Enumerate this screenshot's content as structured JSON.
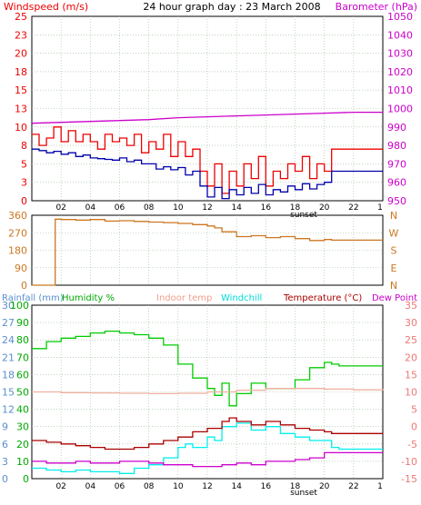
{
  "header": {
    "title": "24 hour graph day : 23 March 2008",
    "left_label": "Windspeed (m/s)",
    "right_label": "Barometer (hPa)"
  },
  "legend": {
    "rainfall": "Rainfall (mm)",
    "humidity": "Humidity %",
    "indoor": "Indoor temp",
    "windchill": "Windchill",
    "temperature": "Temperature (°C)",
    "dewpoint": "Dew Point"
  },
  "sunset_label": "sunset",
  "colors": {
    "windspeed": "#ee0000",
    "average_wind": "#0000aa",
    "barometer": "#cc00cc",
    "direction": "#cc7722",
    "humidity": "#00cc00",
    "indoor": "#f0b0a0",
    "windchill": "#00eeee",
    "temperature": "#aa0000",
    "dewpoint": "#cc00cc",
    "grid": "#99bb99",
    "axis_left_top": "#ee0000",
    "axis_right_top": "#cc00cc",
    "axis_bottom_left_blue": "#5b8fcf",
    "axis_bottom_left_green": "#00aa00",
    "axis_bottom_right": "#ee7777"
  },
  "chart_data": [
    {
      "id": "wind_baro",
      "type": "line",
      "title": "24 hour graph day : 23 March 2008",
      "xlabel": "",
      "x_ticks": [
        "02",
        "04",
        "06",
        "08",
        "10",
        "12",
        "14",
        "16",
        "18",
        "20",
        "22"
      ],
      "x_end_tick": "1",
      "xlim": [
        0,
        24
      ],
      "y_left_label": "Windspeed (m/s)",
      "y_left_ticks": [
        0,
        3,
        5,
        8,
        10,
        13,
        15,
        18,
        20,
        23,
        25
      ],
      "y_left_lim": [
        0,
        25
      ],
      "y_right_label": "Barometer (hPa)",
      "y_right_ticks": [
        950,
        960,
        970,
        980,
        990,
        1000,
        1010,
        1020,
        1030,
        1040,
        1050
      ],
      "y_right_lim": [
        950,
        1050
      ],
      "grid": true,
      "series": [
        {
          "name": "Windspeed (m/s)",
          "axis": "left",
          "key": "windspeed",
          "x": [
            0,
            0.5,
            1,
            1.5,
            2,
            2.5,
            3,
            3.5,
            4,
            4.5,
            5,
            5.5,
            6,
            6.5,
            7,
            7.5,
            8,
            8.5,
            9,
            9.5,
            10,
            10.5,
            11,
            11.5,
            12,
            12.5,
            13,
            13.5,
            14,
            14.5,
            15,
            15.5,
            16,
            16.5,
            17,
            17.5,
            18,
            18.5,
            19,
            19.5,
            20,
            20.5,
            21,
            21.5,
            22,
            22.5,
            23,
            23.5,
            24
          ],
          "y": [
            9,
            7.5,
            8.5,
            10,
            8,
            9.5,
            8,
            9,
            8,
            7,
            9,
            8,
            8.5,
            7.5,
            9,
            6.5,
            8,
            7,
            9,
            6,
            8,
            6,
            7,
            4,
            2,
            5,
            1,
            4,
            2,
            5,
            3,
            6,
            2,
            4,
            3,
            5,
            4,
            6,
            3,
            5,
            4,
            7,
            7,
            7,
            7,
            7,
            7,
            7,
            7
          ]
        },
        {
          "name": "Average windspeed",
          "axis": "left",
          "key": "average_wind",
          "x": [
            0,
            0.5,
            1,
            1.5,
            2,
            2.5,
            3,
            3.5,
            4,
            4.5,
            5,
            5.5,
            6,
            6.5,
            7,
            7.5,
            8,
            8.5,
            9,
            9.5,
            10,
            10.5,
            11,
            11.5,
            12,
            12.5,
            13,
            13.5,
            14,
            14.5,
            15,
            15.5,
            16,
            16.5,
            17,
            17.5,
            18,
            18.5,
            19,
            19.5,
            20,
            20.5,
            21,
            21.5,
            22,
            22.5,
            23,
            23.5,
            24
          ],
          "y": [
            7,
            6.8,
            6.5,
            6.7,
            6.3,
            6.5,
            6,
            6.2,
            5.8,
            5.7,
            5.6,
            5.5,
            5.8,
            5.3,
            5.5,
            5,
            5,
            4.3,
            4.6,
            4.2,
            4.5,
            3.5,
            4,
            2,
            0.5,
            1.8,
            0.3,
            1.5,
            0.8,
            1.8,
            1,
            2.2,
            0.8,
            1.5,
            1.2,
            2,
            1.5,
            2.3,
            1.6,
            2.2,
            2.5,
            4,
            4,
            4,
            4,
            4,
            4,
            4,
            4
          ]
        },
        {
          "name": "Barometer (hPa)",
          "axis": "right",
          "key": "barometer",
          "x": [
            0,
            2,
            4,
            6,
            8,
            10,
            12,
            14,
            16,
            18,
            20,
            22,
            24
          ],
          "y": [
            992,
            992.5,
            993,
            993.5,
            994,
            995,
            995.5,
            996,
            996.5,
            997,
            997.5,
            998,
            998
          ]
        }
      ]
    },
    {
      "id": "wind_direction",
      "type": "line",
      "xlim": [
        0,
        24
      ],
      "y_left_ticks": [
        0,
        90,
        180,
        270,
        360
      ],
      "y_left_lim": [
        0,
        360
      ],
      "y_right_ticks": [
        "N",
        "W",
        "S",
        "E",
        "N"
      ],
      "grid": true,
      "series": [
        {
          "name": "Wind direction",
          "key": "direction",
          "x": [
            0,
            1.3,
            1.6,
            2,
            3,
            4,
            5,
            6,
            7,
            8,
            9,
            10,
            11,
            12,
            12.5,
            13,
            14,
            15,
            16,
            17,
            18,
            19,
            20,
            20.5,
            21,
            22,
            23,
            24
          ],
          "y": [
            0,
            0,
            340,
            338,
            335,
            338,
            330,
            332,
            328,
            325,
            322,
            318,
            312,
            305,
            295,
            275,
            250,
            255,
            245,
            250,
            240,
            230,
            235,
            232,
            232,
            232,
            232,
            232
          ]
        }
      ]
    },
    {
      "id": "temp_hum",
      "type": "line",
      "xlim": [
        0,
        24
      ],
      "legend": [
        "Rainfall (mm)",
        "Humidity %",
        "Indoor temp",
        "Windchill",
        "Temperature (°C)",
        "Dew Point"
      ],
      "sunset_label": "sunset",
      "y_left_rain_ticks": [
        0,
        3,
        6,
        9,
        12,
        15,
        18,
        21,
        24,
        27,
        30
      ],
      "y_left_hum_ticks": [
        0,
        10,
        20,
        30,
        40,
        50,
        60,
        70,
        80,
        90,
        100
      ],
      "y_left_lim": [
        0,
        100
      ],
      "y_right_ticks": [
        -15,
        -10,
        -5,
        0,
        5,
        10,
        15,
        20,
        25,
        30,
        35
      ],
      "y_right_lim": [
        -15,
        35
      ],
      "grid": true,
      "series": [
        {
          "name": "Humidity %",
          "axis": "left",
          "key": "humidity",
          "x": [
            0,
            1,
            2,
            3,
            4,
            5,
            6,
            7,
            8,
            9,
            10,
            11,
            12,
            12.5,
            13,
            13.5,
            14,
            15,
            16,
            17,
            18,
            19,
            20,
            20.5,
            21,
            22,
            23,
            24
          ],
          "y": [
            75,
            79,
            81,
            82,
            84,
            85,
            84,
            83,
            81,
            77,
            66,
            58,
            52,
            48,
            55,
            42,
            49,
            55,
            52,
            52,
            57,
            64,
            67,
            66,
            65,
            65,
            65,
            65
          ]
        },
        {
          "name": "Indoor temp",
          "axis": "right",
          "key": "indoor",
          "x": [
            0,
            2,
            4,
            6,
            8,
            10,
            12,
            14,
            16,
            18,
            20,
            22,
            24
          ],
          "y": [
            10,
            9.8,
            9.7,
            9.6,
            9.5,
            9.6,
            10,
            10.5,
            11,
            11,
            10.8,
            10.6,
            10.5
          ]
        },
        {
          "name": "Windchill",
          "axis": "right",
          "key": "windchill",
          "x": [
            0,
            1,
            2,
            3,
            4,
            5,
            6,
            7,
            8,
            9,
            10,
            10.5,
            11,
            12,
            12.5,
            13,
            13.5,
            14,
            15,
            16,
            17,
            18,
            19,
            20,
            20.5,
            21,
            22,
            23,
            24
          ],
          "y": [
            -12,
            -12.5,
            -13,
            -12.5,
            -13,
            -13,
            -13.5,
            -12,
            -11,
            -9,
            -6,
            -5,
            -6,
            -3,
            -4,
            0,
            0,
            1,
            -1,
            0,
            -2,
            -3,
            -4,
            -4,
            -6,
            -6.5,
            -6.5,
            -6.5,
            -6.5
          ]
        },
        {
          "name": "Temperature (°C)",
          "axis": "right",
          "key": "temperature",
          "x": [
            0,
            1,
            2,
            3,
            4,
            5,
            6,
            7,
            8,
            9,
            10,
            11,
            12,
            13,
            13.5,
            14,
            15,
            16,
            17,
            18,
            19,
            20,
            20.5,
            21,
            22,
            23,
            24
          ],
          "y": [
            -4,
            -4.5,
            -5,
            -5.5,
            -6,
            -6.5,
            -6.5,
            -6,
            -5,
            -4,
            -3,
            -1.5,
            -0.5,
            1.5,
            2.5,
            1.5,
            0.5,
            1.5,
            0.5,
            -0.5,
            -1,
            -1.5,
            -2,
            -2,
            -2,
            -2,
            -2
          ]
        },
        {
          "name": "Dew Point",
          "axis": "right",
          "key": "dewpoint",
          "x": [
            0,
            1,
            2,
            3,
            4,
            5,
            6,
            7,
            8,
            9,
            10,
            11,
            12,
            13,
            14,
            15,
            16,
            17,
            18,
            19,
            20,
            20.5,
            21,
            22,
            23,
            24
          ],
          "y": [
            -10,
            -10.5,
            -10.5,
            -10,
            -10.5,
            -10.5,
            -10,
            -10,
            -10.5,
            -11,
            -11,
            -11.5,
            -11.5,
            -11,
            -10.5,
            -11,
            -10,
            -10,
            -9.5,
            -9,
            -7.5,
            -7.5,
            -7.5,
            -7.5,
            -7.5,
            -7.5
          ]
        }
      ]
    }
  ]
}
